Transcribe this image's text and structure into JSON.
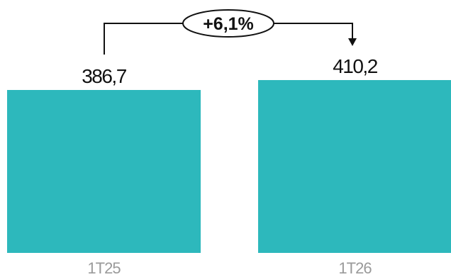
{
  "chart_data": {
    "type": "bar",
    "categories": [
      "1T25",
      "1T26"
    ],
    "values": [
      386.7,
      410.2
    ],
    "value_labels": [
      "386,7",
      "410,2"
    ],
    "change_label": "+6,1%",
    "title": "",
    "xlabel": "",
    "ylabel": "",
    "grid": false,
    "colors": {
      "bar": "#2db8bc",
      "text": "#111111",
      "category_text": "#9a9a9a"
    }
  }
}
